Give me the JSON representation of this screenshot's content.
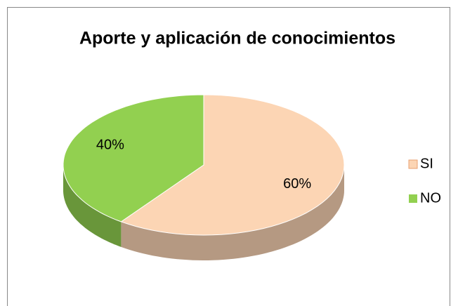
{
  "chart_data": {
    "type": "pie",
    "title": "Aporte y aplicación de conocimientos",
    "categories": [
      "SI",
      "NO"
    ],
    "values": [
      60,
      40
    ],
    "value_labels": [
      "60%",
      "40%"
    ],
    "colors": [
      "#fcd5b4",
      "#92d050"
    ],
    "legend": "right"
  }
}
